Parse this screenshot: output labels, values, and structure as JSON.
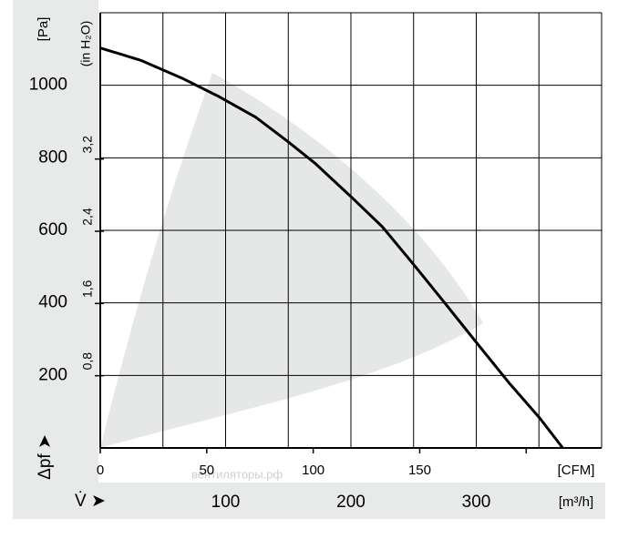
{
  "chart_data": {
    "type": "line",
    "y_unit": "[Pa]",
    "y2_unit": "(in H₂O)",
    "y_symbol": "Δpf ➤",
    "x_symbol": "V̇ ➤",
    "x_unit": "[m³/h]",
    "x2_unit": "[CFM]",
    "watermark": "вентиляторы.рф",
    "x": [
      0,
      33,
      65,
      94,
      124,
      150,
      171,
      200,
      225,
      250,
      276,
      301,
      327,
      351,
      369
    ],
    "series": [
      {
        "name": "Δpf",
        "color": "#000000",
        "values": [
          1103,
          1068,
          1020,
          970,
          912,
          844,
          786,
          693,
          610,
          506,
          395,
          287,
          176,
          81,
          0
        ]
      }
    ],
    "xlim": [
      0,
      400
    ],
    "xticks": [
      {
        "value": 0,
        "label": null
      },
      {
        "value": 50,
        "label": null
      },
      100,
      {
        "value": 150,
        "label": null
      },
      200,
      {
        "value": 250,
        "label": null
      },
      300,
      {
        "value": 350,
        "label": null
      },
      {
        "value": 400,
        "label": null
      }
    ],
    "x2lim": [
      0,
      235.4
    ],
    "x2ticks": [
      0,
      50,
      100,
      150,
      {
        "value": 200,
        "label": null
      }
    ],
    "ylim": [
      0,
      1200
    ],
    "yticks": [
      200,
      400,
      600,
      800,
      1000
    ],
    "y2lim": [
      0,
      4.82
    ],
    "y2ticks": [
      {
        "value": 0.8,
        "label": "0,8"
      },
      {
        "value": 1.6,
        "label": "1,6"
      },
      {
        "value": 2.4,
        "label": "2,4"
      },
      {
        "value": 3.2,
        "label": "3,2"
      }
    ],
    "grid": true
  }
}
